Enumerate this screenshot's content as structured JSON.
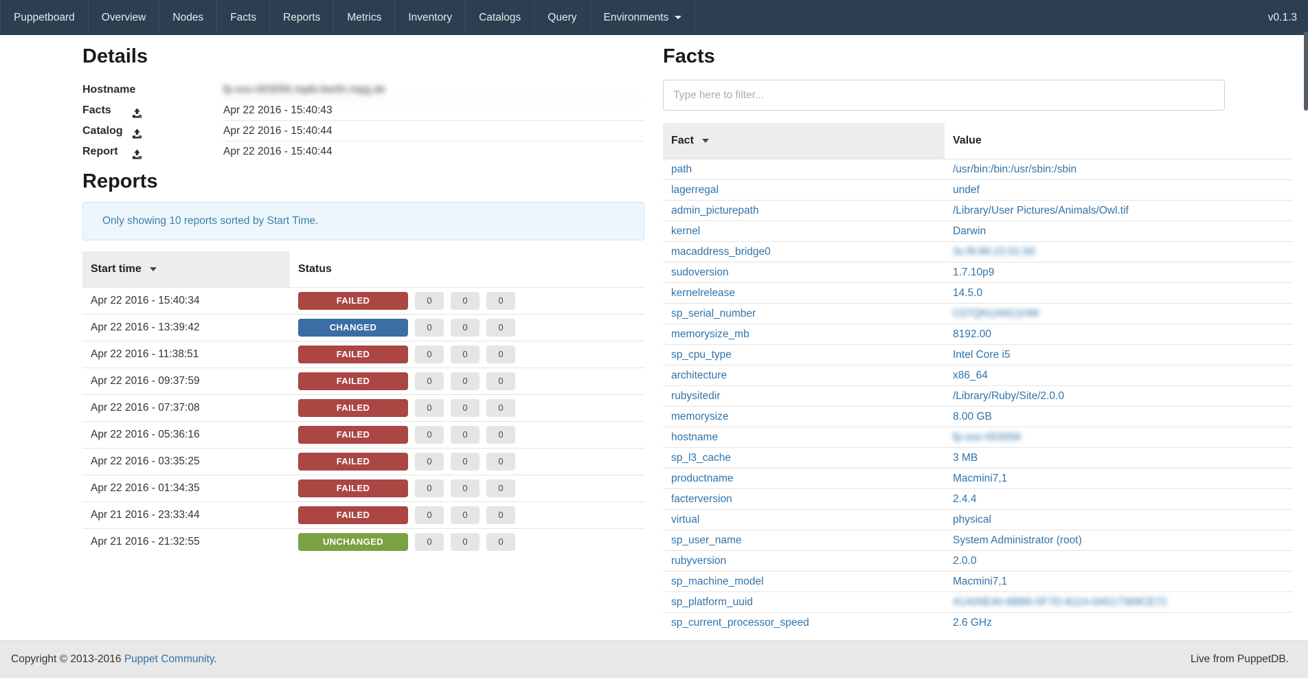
{
  "colors": {
    "navbar_bg": "#2c3e50",
    "link_blue": "#3173a9",
    "status_failed": "#ab4643",
    "status_changed": "#3a6ea5",
    "status_unchanged": "#7ba143",
    "alert_text": "#3a7fa9"
  },
  "navbar": {
    "brand": "Puppetboard",
    "items": [
      "Overview",
      "Nodes",
      "Facts",
      "Reports",
      "Metrics",
      "Inventory",
      "Catalogs",
      "Query"
    ],
    "dropdown_label": "Environments",
    "version": "v0.1.3"
  },
  "details": {
    "title": "Details",
    "rows": [
      {
        "label": "Hostname",
        "icon": null,
        "value": "fp-osx-003056.mpib-berlin.mpg.de",
        "blurred": true
      },
      {
        "label": "Facts",
        "icon": "upload-icon",
        "value": "Apr 22 2016 - 15:40:43",
        "blurred": false
      },
      {
        "label": "Catalog",
        "icon": "upload-icon",
        "value": "Apr 22 2016 - 15:40:44",
        "blurred": false
      },
      {
        "label": "Report",
        "icon": "upload-icon",
        "value": "Apr 22 2016 - 15:40:44",
        "blurred": false
      }
    ]
  },
  "reports": {
    "title": "Reports",
    "alert": "Only showing 10 reports sorted by Start Time.",
    "columns": {
      "start_time": "Start time",
      "status": "Status"
    },
    "sorted_column": "Start time",
    "rows": [
      {
        "start_time": "Apr 22 2016 - 15:40:34",
        "status": "FAILED",
        "counts": [
          0,
          0,
          0
        ]
      },
      {
        "start_time": "Apr 22 2016 - 13:39:42",
        "status": "CHANGED",
        "counts": [
          0,
          0,
          0
        ]
      },
      {
        "start_time": "Apr 22 2016 - 11:38:51",
        "status": "FAILED",
        "counts": [
          0,
          0,
          0
        ]
      },
      {
        "start_time": "Apr 22 2016 - 09:37:59",
        "status": "FAILED",
        "counts": [
          0,
          0,
          0
        ]
      },
      {
        "start_time": "Apr 22 2016 - 07:37:08",
        "status": "FAILED",
        "counts": [
          0,
          0,
          0
        ]
      },
      {
        "start_time": "Apr 22 2016 - 05:36:16",
        "status": "FAILED",
        "counts": [
          0,
          0,
          0
        ]
      },
      {
        "start_time": "Apr 22 2016 - 03:35:25",
        "status": "FAILED",
        "counts": [
          0,
          0,
          0
        ]
      },
      {
        "start_time": "Apr 22 2016 - 01:34:35",
        "status": "FAILED",
        "counts": [
          0,
          0,
          0
        ]
      },
      {
        "start_time": "Apr 21 2016 - 23:33:44",
        "status": "FAILED",
        "counts": [
          0,
          0,
          0
        ]
      },
      {
        "start_time": "Apr 21 2016 - 21:32:55",
        "status": "UNCHANGED",
        "counts": [
          0,
          0,
          0
        ]
      }
    ]
  },
  "facts": {
    "title": "Facts",
    "filter_placeholder": "Type here to filter...",
    "columns": {
      "fact": "Fact",
      "value": "Value"
    },
    "sorted_column": "Fact",
    "rows": [
      {
        "fact": "path",
        "value": "/usr/bin:/bin:/usr/sbin:/sbin",
        "blurred": false
      },
      {
        "fact": "lagerregal",
        "value": "undef",
        "blurred": false
      },
      {
        "fact": "admin_picturepath",
        "value": "/Library/User Pictures/Animals/Owl.tif",
        "blurred": false
      },
      {
        "fact": "kernel",
        "value": "Darwin",
        "blurred": false
      },
      {
        "fact": "macaddress_bridge0",
        "value": "3c:f9:86:22:01:00",
        "blurred": true
      },
      {
        "fact": "sudoversion",
        "value": "1.7.10p9",
        "blurred": false
      },
      {
        "fact": "kernelrelease",
        "value": "14.5.0",
        "blurred": false
      },
      {
        "fact": "sp_serial_number",
        "value": "C07QN1A6G1HW",
        "blurred": true
      },
      {
        "fact": "memorysize_mb",
        "value": "8192.00",
        "blurred": false
      },
      {
        "fact": "sp_cpu_type",
        "value": "Intel Core i5",
        "blurred": false
      },
      {
        "fact": "architecture",
        "value": "x86_64",
        "blurred": false
      },
      {
        "fact": "rubysitedir",
        "value": "/Library/Ruby/Site/2.0.0",
        "blurred": false
      },
      {
        "fact": "memorysize",
        "value": "8.00 GB",
        "blurred": false
      },
      {
        "fact": "hostname",
        "value": "fp-osx-003056",
        "blurred": true
      },
      {
        "fact": "sp_l3_cache",
        "value": "3 MB",
        "blurred": false
      },
      {
        "fact": "productname",
        "value": "Macmini7,1",
        "blurred": false
      },
      {
        "fact": "facterversion",
        "value": "2.4.4",
        "blurred": false
      },
      {
        "fact": "virtual",
        "value": "physical",
        "blurred": false
      },
      {
        "fact": "sp_user_name",
        "value": "System Administrator (root)",
        "blurred": false
      },
      {
        "fact": "rubyversion",
        "value": "2.0.0",
        "blurred": false
      },
      {
        "fact": "sp_machine_model",
        "value": "Macmini7,1",
        "blurred": false
      },
      {
        "fact": "sp_platform_uuid",
        "value": "41A00E40-6BB6-5F7D-8114-0A517369CE72",
        "blurred": true
      },
      {
        "fact": "sp_current_processor_speed",
        "value": "2.6 GHz",
        "blurred": false
      }
    ]
  },
  "footer": {
    "copyright_prefix": "Copyright © 2013-2016 ",
    "copyright_link": "Puppet Community",
    "copyright_suffix": ".",
    "right_text": "Live from PuppetDB."
  }
}
